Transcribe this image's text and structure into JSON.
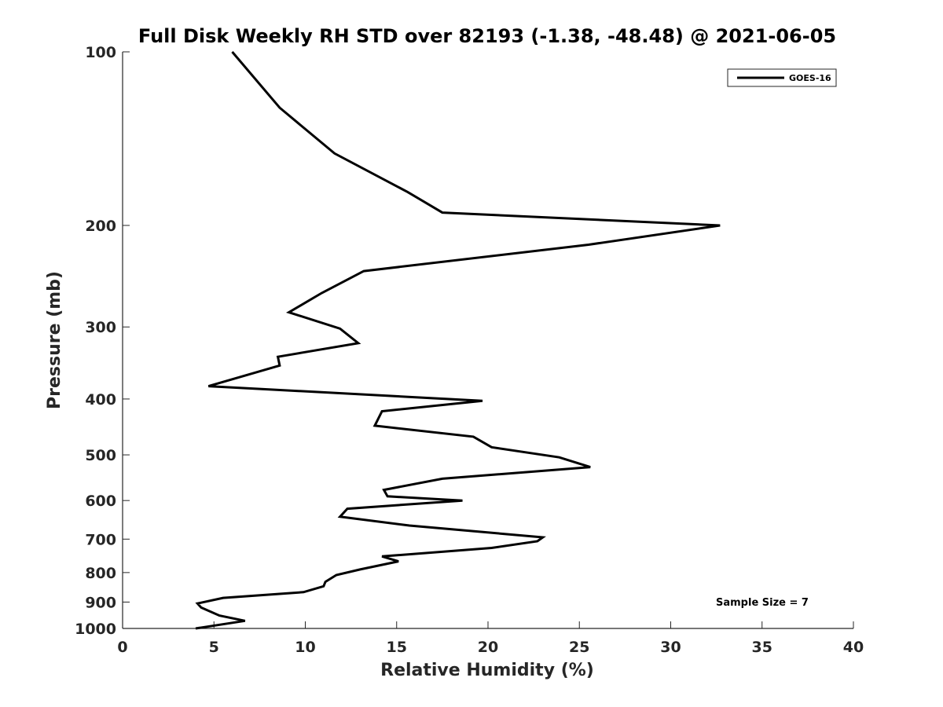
{
  "chart_data": {
    "type": "line",
    "title": "Full Disk Weekly RH STD over 82193 (-1.38, -48.48) @ 2021-06-05",
    "xlabel": "Relative Humidity (%)",
    "ylabel": "Pressure (mb)",
    "xlim": [
      0,
      40
    ],
    "ylim": [
      100,
      1000
    ],
    "yscale": "log",
    "reverse_y": true,
    "xticks": [
      0,
      5,
      10,
      15,
      20,
      25,
      30,
      35,
      40
    ],
    "yticks": [
      100,
      200,
      300,
      400,
      500,
      600,
      700,
      800,
      900,
      1000
    ],
    "grid": false,
    "legend": {
      "position": "top-right",
      "entries": [
        "GOES-16"
      ]
    },
    "annotation": "Sample Size = 7",
    "series": [
      {
        "name": "GOES-16",
        "color": "#000000",
        "x": [
          6.0,
          8.6,
          11.6,
          15.6,
          17.5,
          32.7,
          25.5,
          13.2,
          10.9,
          9.1,
          11.9,
          12.9,
          8.5,
          8.6,
          4.7,
          19.7,
          14.2,
          13.8,
          19.2,
          20.2,
          23.9,
          25.6,
          17.5,
          14.3,
          14.5,
          18.6,
          12.3,
          11.9,
          15.7,
          23.0,
          22.7,
          20.2,
          14.2,
          15.1,
          13.0,
          11.7,
          11.1,
          11.0,
          9.9,
          5.5,
          4.1,
          4.3,
          5.3,
          6.7,
          4.0
        ],
        "y": [
          100,
          125,
          150,
          175,
          190,
          200,
          216,
          240,
          262,
          283,
          302,
          320,
          338,
          350,
          380,
          403,
          420,
          445,
          465,
          485,
          505,
          525,
          550,
          575,
          590,
          600,
          620,
          640,
          663,
          695,
          706,
          725,
          750,
          765,
          790,
          808,
          830,
          845,
          865,
          885,
          905,
          920,
          950,
          970,
          1000
        ]
      }
    ]
  }
}
